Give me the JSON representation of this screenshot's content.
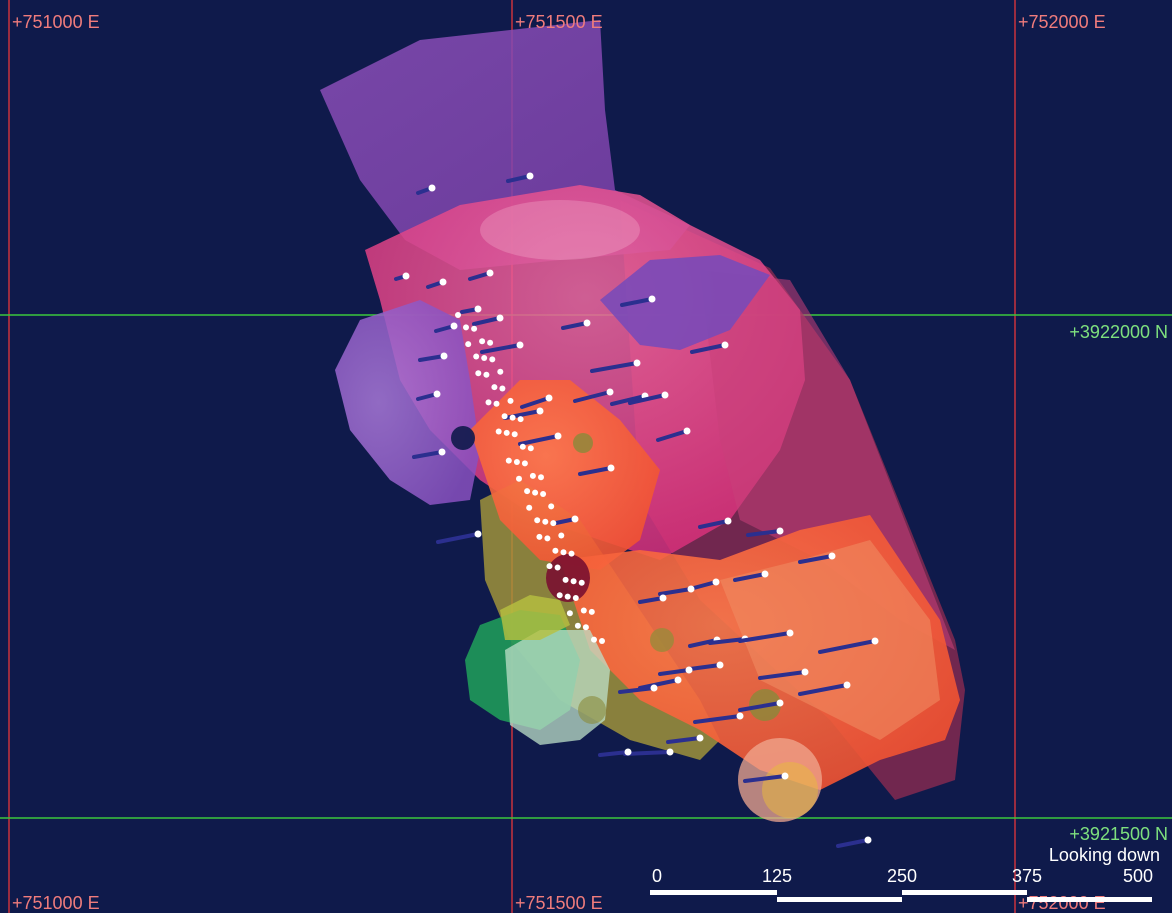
{
  "map": {
    "view_direction": "Looking down",
    "easting_labels": [
      "+751000 E",
      "+751500 E",
      "+752000 E"
    ],
    "northing_labels": [
      "+3922000 N",
      "+3921500 N"
    ],
    "easting_values": [
      751000,
      751500,
      752000
    ],
    "northing_values": [
      3922000,
      3921500
    ],
    "colors": {
      "background": "#0f1a4b",
      "easting_grid": "#c8323c",
      "northing_grid": "#3cc83c",
      "easting_label": "#f07c7c",
      "northing_label": "#7ee07e",
      "collar": "#ffffff",
      "drill_trace": "#2b2f8f"
    }
  },
  "scale_bar": {
    "tick_labels": [
      "0",
      "125",
      "250",
      "375",
      "500"
    ],
    "tick_values": [
      0,
      125,
      250,
      375,
      500
    ]
  }
}
